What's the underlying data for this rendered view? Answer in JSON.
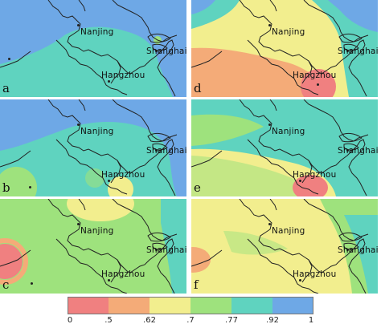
{
  "cities": {
    "nanjing": "Nanjing",
    "shanghai": "Shanghai",
    "hangzhou": "Hangzhou"
  },
  "panels": [
    {
      "id": "a",
      "label": "a"
    },
    {
      "id": "b",
      "label": "b"
    },
    {
      "id": "c",
      "label": "c"
    },
    {
      "id": "d",
      "label": "d"
    },
    {
      "id": "e",
      "label": "e"
    },
    {
      "id": "f",
      "label": "f"
    }
  ],
  "legend": {
    "ticks": [
      "0",
      ".5",
      ".62",
      ".7",
      ".77",
      ".92",
      "1"
    ],
    "colors": [
      "#f08080",
      "#f4ab78",
      "#f2ee8e",
      "#9ee27d",
      "#5fd3bf",
      "#6ea8e6"
    ]
  }
}
